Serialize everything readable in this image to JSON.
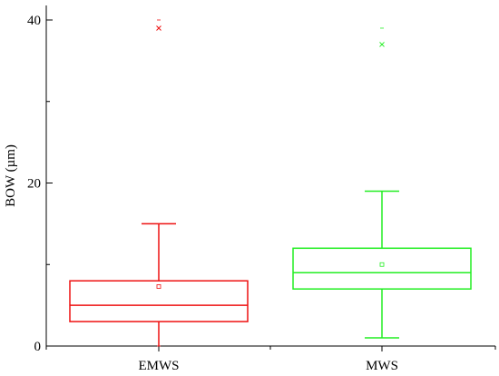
{
  "chart_data": {
    "type": "box",
    "title": "",
    "xlabel": "",
    "ylabel": "BOW (µm)",
    "ylim": [
      0,
      42
    ],
    "y_ticks": [
      0,
      20,
      40
    ],
    "y_tick_labels": [
      "0",
      "20",
      "40"
    ],
    "grid": false,
    "legend": "none",
    "categories": [
      "EMWS",
      "MWS"
    ],
    "boxes": [
      {
        "category": "EMWS",
        "color": "#ee1111",
        "whisker_low": 0,
        "q1": 3,
        "median": 5,
        "q3": 8,
        "whisker_high": 15,
        "mean": 7.3,
        "outliers_x": [
          39
        ],
        "max_marker": 40,
        "min_marker": 0
      },
      {
        "category": "MWS",
        "color": "#22ee22",
        "whisker_low": 1,
        "q1": 7,
        "median": 9,
        "q3": 12,
        "whisker_high": 19,
        "mean": 10,
        "outliers_x": [
          37
        ],
        "max_marker": 39,
        "min_marker": 1
      }
    ]
  }
}
